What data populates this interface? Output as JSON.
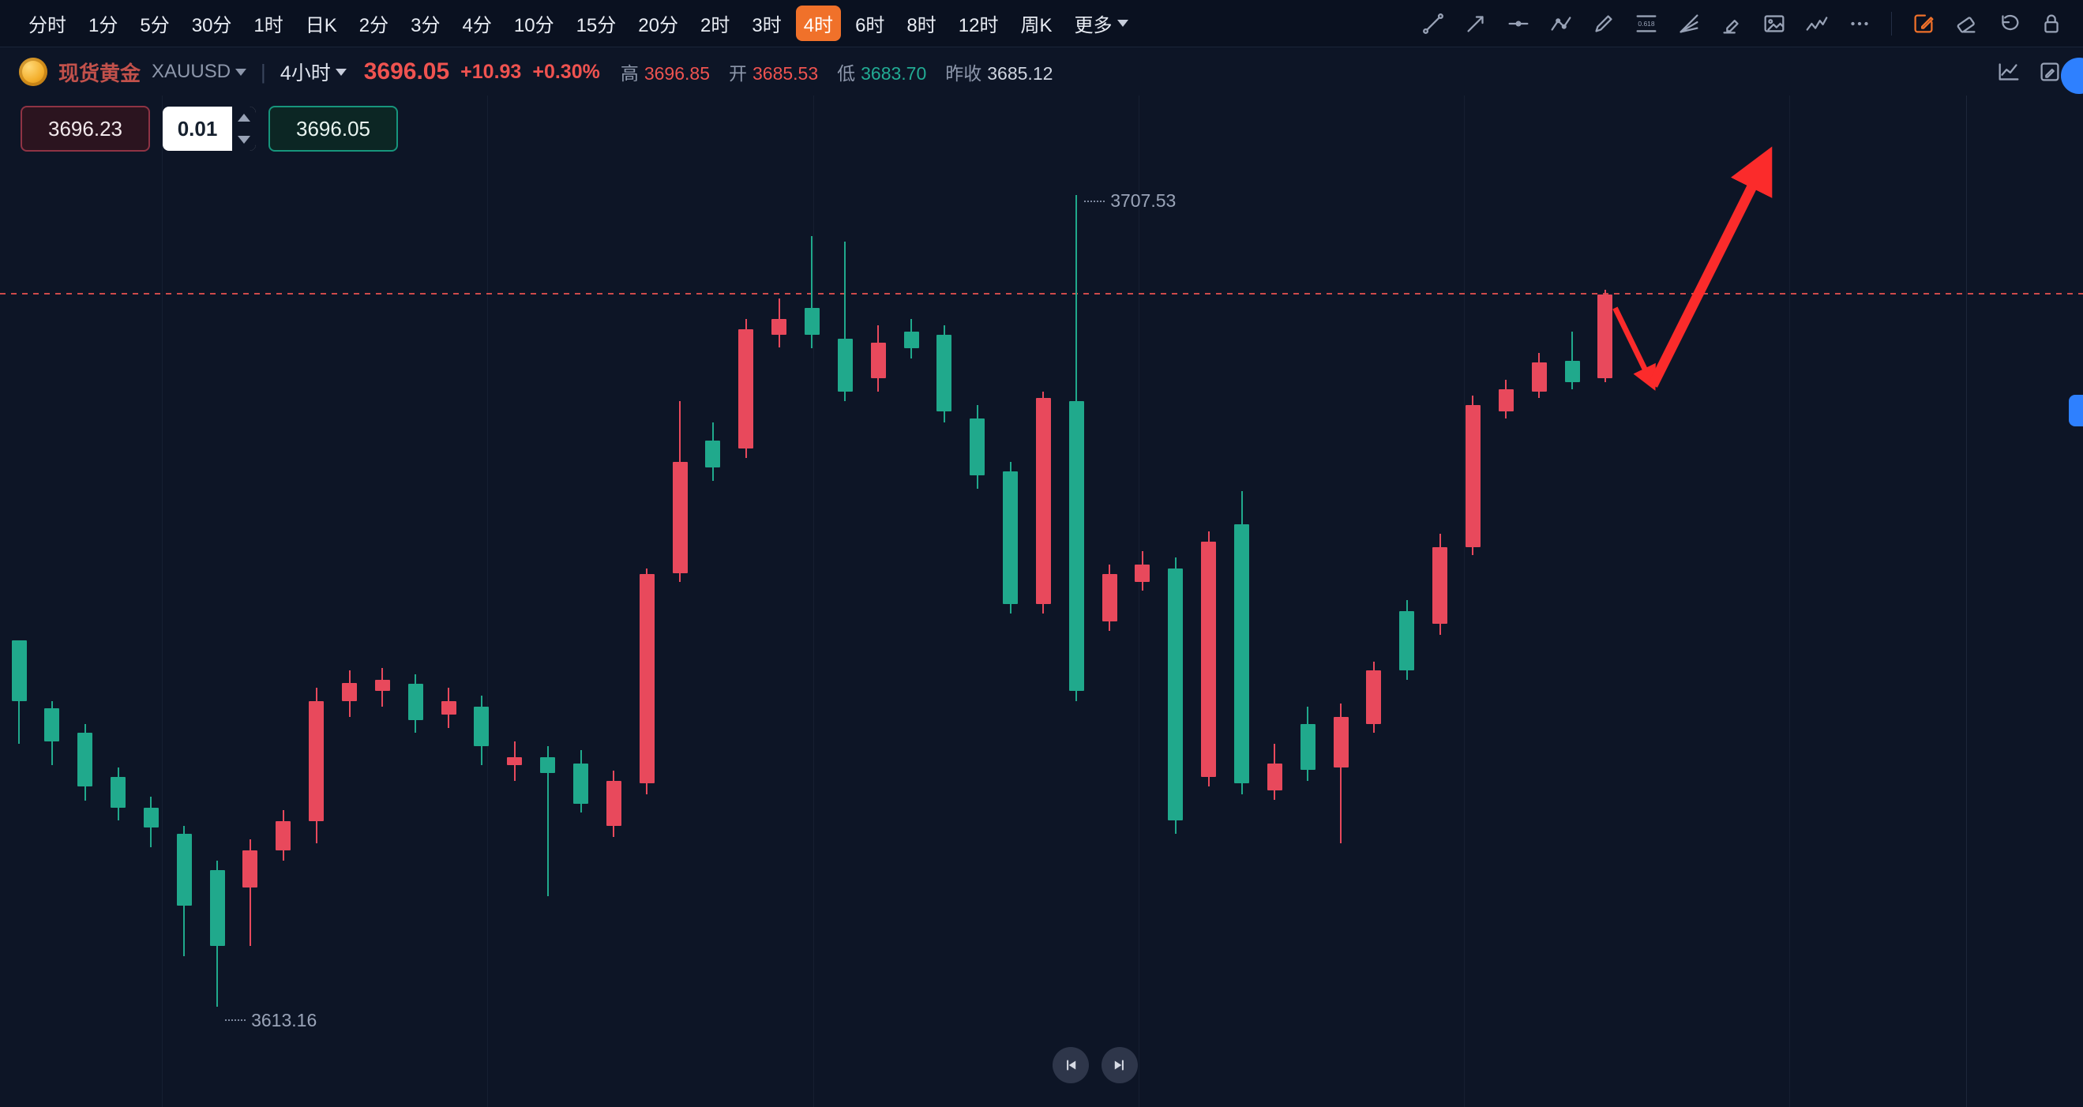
{
  "colors": {
    "background": "#0d1526",
    "accent_orange": "#f0712a",
    "red": "#ef5350",
    "green": "#22ab94",
    "annotation_red": "#fb2b2b"
  },
  "toolbar": {
    "timeframes": [
      {
        "label": "分时"
      },
      {
        "label": "1分"
      },
      {
        "label": "5分"
      },
      {
        "label": "30分"
      },
      {
        "label": "1时"
      },
      {
        "label": "日K"
      },
      {
        "label": "2分"
      },
      {
        "label": "3分"
      },
      {
        "label": "4分"
      },
      {
        "label": "10分"
      },
      {
        "label": "15分"
      },
      {
        "label": "20分"
      },
      {
        "label": "2时"
      },
      {
        "label": "3时"
      },
      {
        "label": "4时",
        "active": true
      },
      {
        "label": "6时"
      },
      {
        "label": "8时"
      },
      {
        "label": "12时"
      },
      {
        "label": "周K"
      },
      {
        "label": "更多",
        "dropdown": true
      }
    ],
    "fib_tool_label": "0.618",
    "draw_tools": [
      "trend-line",
      "arrow-ray",
      "horizontal-line",
      "polyline",
      "brush",
      "fibonacci",
      "gann-fan",
      "marker",
      "image",
      "wave-pattern",
      "more-tools"
    ],
    "actions": [
      "compose",
      "eraser",
      "undo",
      "lock"
    ]
  },
  "symbol_bar": {
    "name": "现货黄金",
    "code": "XAUUSD",
    "interval": "4小时",
    "price": "3696.05",
    "change": "+10.93",
    "change_pct": "+0.30%",
    "stats": [
      {
        "key": "high",
        "label": "高",
        "value": "3696.85",
        "color": "red"
      },
      {
        "key": "open",
        "label": "开",
        "value": "3685.53",
        "color": "red"
      },
      {
        "key": "low",
        "label": "低",
        "value": "3683.70",
        "color": "green"
      },
      {
        "key": "prev-close",
        "label": "昨收",
        "value": "3685.12",
        "color": "neutral"
      }
    ],
    "right_icons": [
      "indicator",
      "edit"
    ]
  },
  "order_panel": {
    "sell_price": "3696.23",
    "quantity": "0.01",
    "buy_price": "3696.05"
  },
  "chart_data": {
    "type": "candlestick",
    "symbol": "XAUUSD",
    "title": "现货黄金 4小时 K线",
    "interval": "4小时",
    "up_color": "#e8495c",
    "down_color": "#20a98c",
    "price_line": 3696.05,
    "high_label": {
      "text": "3707.53",
      "candle": 32
    },
    "low_label": {
      "text": "3613.16",
      "candle": 6
    },
    "price_range_visible": [
      3613.16,
      3707.53
    ],
    "legend_position": "none",
    "grid": "vertical-only",
    "annotation": {
      "type": "zigzag-arrow",
      "color": "#fb2b2b",
      "segments": [
        {
          "from": [
            48.3,
            3694.4
          ],
          "to": [
            49.44,
            3685.4
          ],
          "width": 7
        },
        {
          "from": [
            49.44,
            3685.4
          ],
          "to": [
            52.9,
            3712.0
          ],
          "width": 13
        }
      ]
    },
    "candles": [
      [
        3655.77,
        3655.77,
        3643.72,
        3648.67
      ],
      [
        3647.89,
        3648.67,
        3641.25,
        3644.03
      ],
      [
        3644.96,
        3646.04,
        3637.08,
        3638.78
      ],
      [
        3639.86,
        3640.94,
        3634.76,
        3636.31
      ],
      [
        3636.31,
        3637.54,
        3631.67,
        3633.99
      ],
      [
        3633.22,
        3634.14,
        3619.0,
        3624.87
      ],
      [
        3629.04,
        3630.13,
        3613.16,
        3620.24
      ],
      [
        3627.04,
        3632.6,
        3620.24,
        3631.36
      ],
      [
        3631.36,
        3636.0,
        3630.13,
        3634.76
      ],
      [
        3634.76,
        3650.21,
        3632.13,
        3648.67
      ],
      [
        3648.67,
        3652.22,
        3646.81,
        3650.83
      ],
      [
        3649.9,
        3652.53,
        3648.05,
        3651.14
      ],
      [
        3650.67,
        3651.76,
        3644.96,
        3646.5
      ],
      [
        3647.12,
        3650.21,
        3645.58,
        3648.67
      ],
      [
        3648.05,
        3649.28,
        3641.25,
        3643.41
      ],
      [
        3641.25,
        3644.03,
        3639.4,
        3642.18
      ],
      [
        3642.18,
        3643.41,
        3625.95,
        3640.32
      ],
      [
        3641.4,
        3642.95,
        3635.69,
        3636.77
      ],
      [
        3634.14,
        3640.63,
        3632.91,
        3639.4
      ],
      [
        3639.09,
        3664.12,
        3637.85,
        3663.5
      ],
      [
        3663.5,
        3683.58,
        3662.57,
        3676.48
      ],
      [
        3678.95,
        3681.11,
        3674.31,
        3675.86
      ],
      [
        3678.02,
        3693.16,
        3676.94,
        3691.93
      ],
      [
        3691.31,
        3695.48,
        3689.76,
        3693.16
      ],
      [
        3694.4,
        3702.74,
        3689.76,
        3691.31
      ],
      [
        3690.84,
        3702.12,
        3683.58,
        3684.66
      ],
      [
        3686.21,
        3692.39,
        3684.66,
        3690.38
      ],
      [
        3691.62,
        3693.16,
        3688.53,
        3689.76
      ],
      [
        3691.31,
        3692.39,
        3681.11,
        3682.35
      ],
      [
        3681.57,
        3683.12,
        3673.39,
        3674.93
      ],
      [
        3675.39,
        3676.48,
        3658.86,
        3659.94
      ],
      [
        3659.94,
        3684.66,
        3658.86,
        3683.89
      ],
      [
        3683.58,
        3707.53,
        3648.67,
        3649.9
      ],
      [
        3657.94,
        3664.58,
        3656.85,
        3663.5
      ],
      [
        3662.57,
        3666.12,
        3661.49,
        3664.58
      ],
      [
        3664.12,
        3665.35,
        3633.22,
        3634.76
      ],
      [
        3639.86,
        3668.44,
        3638.78,
        3667.21
      ],
      [
        3669.21,
        3673.08,
        3637.85,
        3639.09
      ],
      [
        3638.31,
        3643.72,
        3637.23,
        3641.4
      ],
      [
        3646.04,
        3648.05,
        3639.4,
        3640.63
      ],
      [
        3640.94,
        3648.36,
        3632.13,
        3646.81
      ],
      [
        3646.04,
        3653.3,
        3644.96,
        3652.22
      ],
      [
        3659.17,
        3660.41,
        3651.14,
        3652.22
      ],
      [
        3657.63,
        3668.13,
        3656.39,
        3666.59
      ],
      [
        3666.59,
        3684.2,
        3665.66,
        3683.12
      ],
      [
        3682.35,
        3686.05,
        3681.57,
        3684.97
      ],
      [
        3684.66,
        3689.14,
        3683.89,
        3688.06
      ],
      [
        3688.22,
        3691.62,
        3684.97,
        3685.75
      ],
      [
        3686.21,
        3696.56,
        3685.75,
        3695.94
      ]
    ]
  }
}
